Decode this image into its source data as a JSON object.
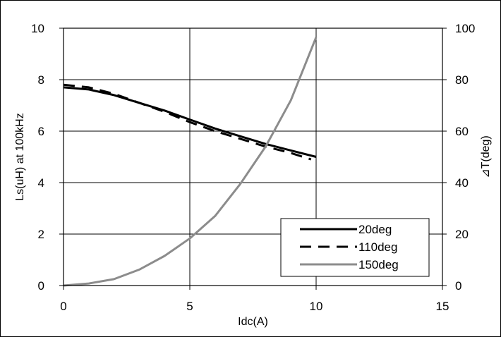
{
  "chart_data": {
    "type": "line",
    "xlabel": "Idc(A)",
    "ylabel_left": "Ls(uH) at 100kHz",
    "ylabel_right": "⊿T(deg)",
    "xlim": [
      0,
      15
    ],
    "ylim_left": [
      0,
      10
    ],
    "ylim_right": [
      0,
      100
    ],
    "x_ticks": [
      "0",
      "5",
      "10",
      "15"
    ],
    "y_ticks_left": [
      "0",
      "2",
      "4",
      "6",
      "8",
      "10"
    ],
    "y_ticks_right": [
      "0",
      "20",
      "40",
      "60",
      "80",
      "100"
    ],
    "grid": true,
    "legend_position": "lower-right",
    "series": [
      {
        "name": "20deg",
        "axis": "left",
        "style": "solid",
        "color": "#000000",
        "x": [
          0,
          1,
          2,
          3,
          4,
          5,
          6,
          7,
          8,
          9,
          10
        ],
        "y": [
          7.7,
          7.62,
          7.4,
          7.1,
          6.8,
          6.45,
          6.1,
          5.8,
          5.5,
          5.25,
          5.0
        ]
      },
      {
        "name": "110deg",
        "axis": "left",
        "style": "dashed",
        "color": "#000000",
        "x": [
          0,
          1,
          2,
          3,
          4,
          5,
          6,
          7,
          8,
          9,
          9.8
        ],
        "y": [
          7.8,
          7.7,
          7.45,
          7.1,
          6.75,
          6.35,
          6.0,
          5.7,
          5.4,
          5.15,
          4.9
        ]
      },
      {
        "name": "150deg",
        "axis": "right",
        "style": "solid",
        "color": "#8c8c8c",
        "x": [
          0,
          1,
          2,
          3,
          4,
          5,
          6,
          7,
          8,
          9,
          10
        ],
        "y": [
          0,
          0.8,
          2.5,
          6.2,
          11.5,
          18.3,
          27,
          39.5,
          54,
          72,
          96.5
        ]
      }
    ]
  }
}
